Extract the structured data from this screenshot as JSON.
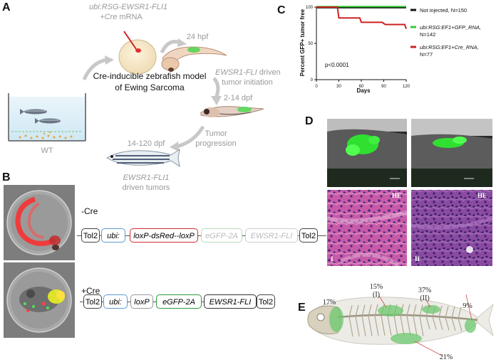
{
  "panelA": {
    "letter": "A",
    "construct_line1": "ubi:RSG-EWSR1-FLI1",
    "construct_line2_italic": "+Cre",
    "construct_line2_rest": " mRNA",
    "stage_24hpf": "24 hpf",
    "initiation_italic": "EWSR1-FLI",
    "initiation_rest": " driven",
    "initiation_line2": "tumor initiation",
    "center_title_line1": "Cre-inducible zebrafish model",
    "center_title_line2": "of Ewing Sarcoma",
    "stage_2_14dpf": "2-14 dpf",
    "progression_line1": "Tumor",
    "progression_line2": "progression",
    "stage_14_120dpf": "14-120 dpf",
    "tumors_italic": "EWSR1-FLI1",
    "tumors_line2": "driven tumors",
    "wt_label": "WT"
  },
  "panelB": {
    "letter": "B",
    "minus_cre": "-Cre",
    "plus_cre": "+Cre",
    "row1": [
      "Tol2",
      "ubi:",
      "loxP-dsRed--loxP",
      "eGFP-2A",
      "EWSR1-FLI",
      "Tol2"
    ],
    "row2": [
      "Tol2",
      "ubi:",
      "loxP",
      "eGFP-2A",
      "EWSR1-FLI",
      "Tol2"
    ]
  },
  "panelC": {
    "letter": "C",
    "chart_data": {
      "type": "line",
      "title": "",
      "xlabel": "Days",
      "ylabel": "Percent GFP+ tumor free",
      "xlim": [
        0,
        120
      ],
      "ylim": [
        0,
        100
      ],
      "x_ticks": [
        0,
        30,
        60,
        90,
        120
      ],
      "y_ticks": [
        0,
        50,
        100
      ],
      "annotation": "p<0.0001",
      "legend_position": "right",
      "series": [
        {
          "name": "Not injected, N=150",
          "color": "#111111",
          "x": [
            0,
            120
          ],
          "y": [
            100,
            100
          ]
        },
        {
          "name": "ubi:RSG:EF1+GFP_RNA, N=142",
          "color": "#33cc33",
          "x": [
            0,
            120
          ],
          "y": [
            100,
            100
          ]
        },
        {
          "name": "ubi:RSG:EF1+Cre_RNA, N=77",
          "color": "#cc2222",
          "x": [
            0,
            28,
            30,
            58,
            60,
            88,
            92,
            118,
            120
          ],
          "y": [
            100,
            100,
            85,
            85,
            79,
            79,
            76,
            76,
            70
          ]
        }
      ]
    }
  },
  "panelD": {
    "letter": "D",
    "he_label": "HE",
    "hist1": "I",
    "hist2": "II"
  },
  "panelE": {
    "letter": "E",
    "pct_17": "17%",
    "pct_15": "15%",
    "pct_15_sub": "(I)",
    "pct_37": "37%",
    "pct_37_sub": "(II)",
    "pct_9": "9%",
    "pct_21": "21%"
  }
}
